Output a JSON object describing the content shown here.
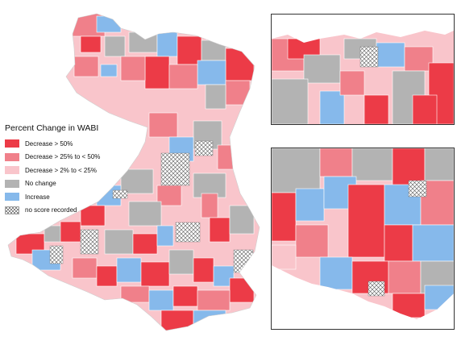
{
  "legend": {
    "title": "Percent Change in WABI",
    "items": [
      {
        "label": "Decrease > 50%",
        "color": "#ec3b47",
        "pattern": false
      },
      {
        "label": "Decrease > 25% to < 50%",
        "color": "#f0808a",
        "pattern": false
      },
      {
        "label": "Decrease > 2% to < 25%",
        "color": "#f9c5cb",
        "pattern": false
      },
      {
        "label": "No change",
        "color": "#b3b3b3",
        "pattern": false
      },
      {
        "label": "Increase",
        "color": "#86b9eb",
        "pattern": false
      },
      {
        "label": "no score recorded",
        "color": "#ffffff",
        "pattern": true
      }
    ]
  },
  "colors": {
    "decrease_50": "#ec3b47",
    "decrease_25_50": "#f0808a",
    "decrease_2_25": "#f9c5cb",
    "no_change": "#b3b3b3",
    "increase": "#86b9eb",
    "hatch": "#444444",
    "boundary": "#ffffff"
  }
}
